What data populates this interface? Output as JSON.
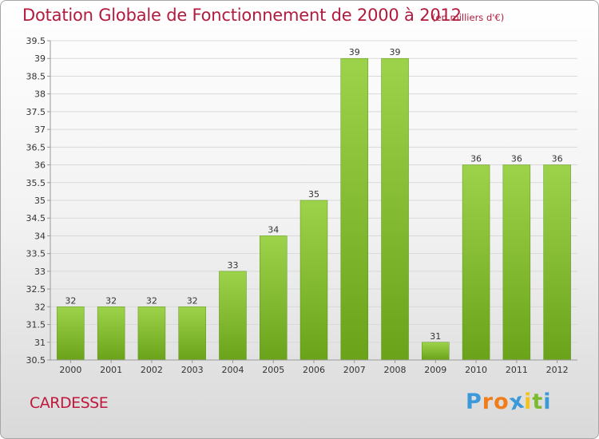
{
  "chart_data": {
    "type": "bar",
    "title": "Dotation Globale de Fonctionnement de 2000 à 2012",
    "subtitle": "(en milliers d'€)",
    "xlabel": "",
    "ylabel": "",
    "categories": [
      "2000",
      "2001",
      "2002",
      "2003",
      "2004",
      "2005",
      "2006",
      "2007",
      "2008",
      "2009",
      "2010",
      "2011",
      "2012"
    ],
    "values": [
      32,
      32,
      32,
      32,
      33,
      34,
      35,
      39,
      39,
      31,
      36,
      36,
      36
    ],
    "data_labels": [
      "32",
      "32",
      "32",
      "32",
      "33",
      "34",
      "35",
      "39",
      "39",
      "31",
      "36",
      "36",
      "36"
    ],
    "ylim": [
      30.5,
      39.5
    ],
    "yticks": [
      "30.5",
      "31",
      "31.5",
      "32",
      "32.5",
      "33",
      "33.5",
      "34",
      "34.5",
      "35",
      "35.5",
      "36",
      "36.5",
      "37",
      "37.5",
      "38",
      "38.5",
      "39",
      "39.5"
    ],
    "grid": true,
    "legend": "none",
    "colors": {
      "bar_light": "#9dd34b",
      "bar_dark": "#6aa31a",
      "grid": "#d9d9d9",
      "axis": "#999999",
      "title": "#b01b3e"
    }
  },
  "footer": {
    "commune": "CARDESSE",
    "logo_letters": [
      "P",
      "r",
      "o",
      "x",
      "i",
      "t",
      "i"
    ],
    "logo_colors": [
      "#3a9ad9",
      "#f07d1a",
      "#f07d1a",
      "#3a9ad9",
      "#f5c218",
      "#7dbb2e",
      "#3a9ad9"
    ]
  }
}
